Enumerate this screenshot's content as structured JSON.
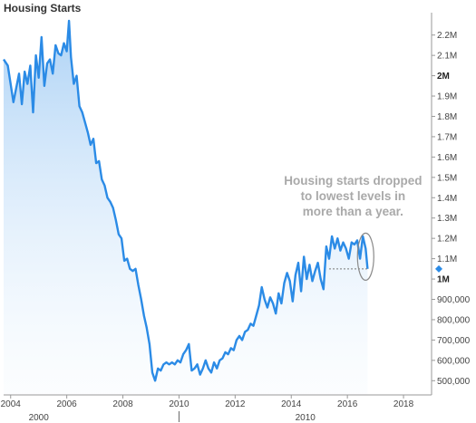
{
  "chart_data": {
    "type": "line",
    "title": "Housing Starts",
    "xlabel": "",
    "ylabel": "",
    "xlim": [
      2003.75,
      2019.0
    ],
    "ylim": [
      430000,
      2310000
    ],
    "grid": false,
    "y_axis_position": "right",
    "x_ticks": [
      {
        "value": 2004,
        "label": "2004"
      },
      {
        "value": 2006,
        "label": "2006"
      },
      {
        "value": 2008,
        "label": "2008"
      },
      {
        "value": 2010,
        "label": "2010"
      },
      {
        "value": 2012,
        "label": "2012"
      },
      {
        "value": 2014,
        "label": "2014"
      },
      {
        "value": 2016,
        "label": "2016"
      },
      {
        "value": 2018,
        "label": "2018"
      }
    ],
    "x_decade_labels": [
      {
        "value": 2000,
        "label": "2000"
      },
      {
        "value": 2010,
        "label": "2010"
      }
    ],
    "y_ticks": [
      {
        "value": 500000,
        "label": "500,000"
      },
      {
        "value": 600000,
        "label": "600,000"
      },
      {
        "value": 700000,
        "label": "700,000"
      },
      {
        "value": 800000,
        "label": "800,000"
      },
      {
        "value": 900000,
        "label": "900,000"
      },
      {
        "value": 1000000,
        "label": "1M",
        "bold": true
      },
      {
        "value": 1100000,
        "label": "1.1M"
      },
      {
        "value": 1200000,
        "label": "1.2M"
      },
      {
        "value": 1300000,
        "label": "1.3M"
      },
      {
        "value": 1400000,
        "label": "1.4M"
      },
      {
        "value": 1500000,
        "label": "1.5M"
      },
      {
        "value": 1600000,
        "label": "1.6M"
      },
      {
        "value": 1700000,
        "label": "1.7M"
      },
      {
        "value": 1800000,
        "label": "1.8M"
      },
      {
        "value": 1900000,
        "label": "1.9M"
      },
      {
        "value": 2000000,
        "label": "2M",
        "bold": true
      },
      {
        "value": 2100000,
        "label": "2.1M"
      },
      {
        "value": 2200000,
        "label": "2.2M"
      }
    ],
    "series": [
      {
        "color": "#2b8be6",
        "x": [
          2003.75,
          2003.9,
          2004.0,
          2004.1,
          2004.2,
          2004.3,
          2004.4,
          2004.5,
          2004.6,
          2004.7,
          2004.8,
          2004.9,
          2005.0,
          2005.1,
          2005.2,
          2005.3,
          2005.4,
          2005.5,
          2005.6,
          2005.7,
          2005.8,
          2005.9,
          2006.0,
          2006.08,
          2006.15,
          2006.25,
          2006.35,
          2006.45,
          2006.55,
          2006.65,
          2006.75,
          2006.85,
          2006.95,
          2007.05,
          2007.15,
          2007.25,
          2007.35,
          2007.45,
          2007.55,
          2007.65,
          2007.75,
          2007.85,
          2007.95,
          2008.05,
          2008.15,
          2008.25,
          2008.35,
          2008.45,
          2008.55,
          2008.65,
          2008.75,
          2008.85,
          2008.95,
          2009.05,
          2009.15,
          2009.25,
          2009.35,
          2009.45,
          2009.55,
          2009.65,
          2009.75,
          2009.85,
          2009.95,
          2010.05,
          2010.15,
          2010.25,
          2010.35,
          2010.45,
          2010.55,
          2010.65,
          2010.75,
          2010.85,
          2010.95,
          2011.05,
          2011.15,
          2011.25,
          2011.35,
          2011.45,
          2011.55,
          2011.65,
          2011.75,
          2011.85,
          2011.95,
          2012.05,
          2012.15,
          2012.25,
          2012.35,
          2012.45,
          2012.55,
          2012.65,
          2012.75,
          2012.85,
          2012.95,
          2013.05,
          2013.15,
          2013.25,
          2013.35,
          2013.45,
          2013.55,
          2013.65,
          2013.75,
          2013.85,
          2013.95,
          2014.05,
          2014.15,
          2014.25,
          2014.35,
          2014.45,
          2014.55,
          2014.65,
          2014.75,
          2014.85,
          2014.95,
          2015.05,
          2015.15,
          2015.25,
          2015.35,
          2015.45,
          2015.55,
          2015.65,
          2015.75,
          2015.85,
          2015.95,
          2016.05,
          2016.15,
          2016.25,
          2016.35,
          2016.45,
          2016.55,
          2016.65,
          2016.72
        ],
        "y": [
          2080000,
          2050000,
          1960000,
          1870000,
          1940000,
          2010000,
          1860000,
          2020000,
          1960000,
          2050000,
          1820000,
          2100000,
          1990000,
          2190000,
          1950000,
          2060000,
          2080000,
          2010000,
          2150000,
          2110000,
          2100000,
          2160000,
          2120000,
          2270000,
          2090000,
          1960000,
          2000000,
          1850000,
          1820000,
          1770000,
          1720000,
          1660000,
          1690000,
          1570000,
          1580000,
          1490000,
          1460000,
          1400000,
          1380000,
          1350000,
          1290000,
          1220000,
          1200000,
          1090000,
          1100000,
          1050000,
          1040000,
          1050000,
          970000,
          900000,
          820000,
          760000,
          680000,
          540000,
          500000,
          560000,
          550000,
          580000,
          590000,
          580000,
          590000,
          580000,
          600000,
          590000,
          630000,
          650000,
          680000,
          550000,
          560000,
          580000,
          530000,
          560000,
          600000,
          560000,
          540000,
          590000,
          560000,
          600000,
          610000,
          640000,
          630000,
          660000,
          650000,
          700000,
          720000,
          700000,
          740000,
          750000,
          780000,
          770000,
          820000,
          870000,
          960000,
          900000,
          860000,
          910000,
          880000,
          830000,
          930000,
          880000,
          980000,
          1030000,
          990000,
          890000,
          1020000,
          1080000,
          940000,
          1110000,
          1000000,
          1070000,
          990000,
          1040000,
          1080000,
          1000000,
          950000,
          1160000,
          1100000,
          1210000,
          1150000,
          1200000,
          1140000,
          1180000,
          1150000,
          1100000,
          1180000,
          1170000,
          1190000,
          1100000,
          1210000,
          1150000,
          1050000
        ]
      }
    ],
    "last_value": 1050000,
    "annotation": {
      "lines": [
        "Housing starts dropped",
        "to lowest levels in",
        "more than a year."
      ]
    }
  }
}
